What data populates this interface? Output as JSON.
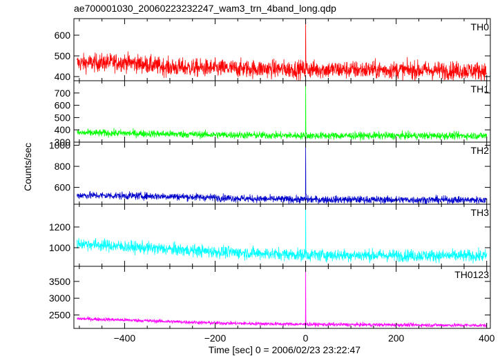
{
  "title": "ae700001030_20060223232247_wam3_trn_4band_long.qdp",
  "xlabel": "Time [sec] 0 = 2006/02/23 23:22:47",
  "ylabel": "Counts/sec",
  "colors": {
    "frame": "#000000",
    "background": "#ffffff"
  },
  "chart_data": [
    {
      "type": "line",
      "series_label": "TH0",
      "color": "#ff0000",
      "xlim": [
        -512,
        408
      ],
      "ylim": [
        380,
        680
      ],
      "yticks": [
        400,
        500,
        600
      ],
      "xticks": [
        -400,
        -200,
        0,
        200,
        400
      ],
      "baseline": [
        [
          -500,
          465
        ],
        [
          -400,
          470
        ],
        [
          -300,
          445
        ],
        [
          -200,
          440
        ],
        [
          0,
          435
        ],
        [
          400,
          428
        ]
      ],
      "noise": 22,
      "spike": {
        "x": 0,
        "peak": 680
      }
    },
    {
      "type": "line",
      "series_label": "TH1",
      "color": "#00ff00",
      "xlim": [
        -512,
        408
      ],
      "ylim": [
        300,
        800
      ],
      "yticks": [
        300,
        400,
        500,
        600,
        700
      ],
      "xticks": [
        -400,
        -200,
        0,
        200,
        400
      ],
      "baseline": [
        [
          -500,
          375
        ],
        [
          -400,
          372
        ],
        [
          -200,
          360
        ],
        [
          0,
          352
        ],
        [
          400,
          352
        ]
      ],
      "noise": 15,
      "spike": {
        "x": 0,
        "peak": 775
      }
    },
    {
      "type": "line",
      "series_label": "TH2",
      "color": "#0000cc",
      "xlim": [
        -512,
        408
      ],
      "ylim": [
        440,
        1030
      ],
      "yticks": [
        600,
        800,
        1000
      ],
      "xticks": [
        -400,
        -200,
        0,
        200,
        400
      ],
      "baseline": [
        [
          -500,
          525
        ],
        [
          -300,
          515
        ],
        [
          -100,
          490
        ],
        [
          0,
          485
        ],
        [
          400,
          480
        ]
      ],
      "noise": 18,
      "spike": {
        "x": 0,
        "peak": 1020
      }
    },
    {
      "type": "line",
      "series_label": "TH3",
      "color": "#00ffff",
      "xlim": [
        -512,
        408
      ],
      "ylim": [
        820,
        1420
      ],
      "yticks": [
        1000,
        1200
      ],
      "xticks": [
        -400,
        -200,
        0,
        200,
        400
      ],
      "baseline": [
        [
          -500,
          1040
        ],
        [
          -400,
          1010
        ],
        [
          -200,
          960
        ],
        [
          0,
          930
        ],
        [
          400,
          920
        ]
      ],
      "noise": 30,
      "spike": {
        "x": 0,
        "peak": 1420
      }
    },
    {
      "type": "line",
      "series_label": "TH0123",
      "color": "#ff00ff",
      "xlim": [
        -512,
        408
      ],
      "ylim": [
        2100,
        3950
      ],
      "yticks": [
        2500,
        3000,
        3500
      ],
      "xticks": [
        -400,
        -200,
        0,
        200,
        400
      ],
      "baseline": [
        [
          -500,
          2390
        ],
        [
          -400,
          2350
        ],
        [
          -200,
          2260
        ],
        [
          0,
          2220
        ],
        [
          400,
          2190
        ]
      ],
      "noise": 28,
      "spike": {
        "x": 0,
        "peak": 3950
      }
    }
  ]
}
